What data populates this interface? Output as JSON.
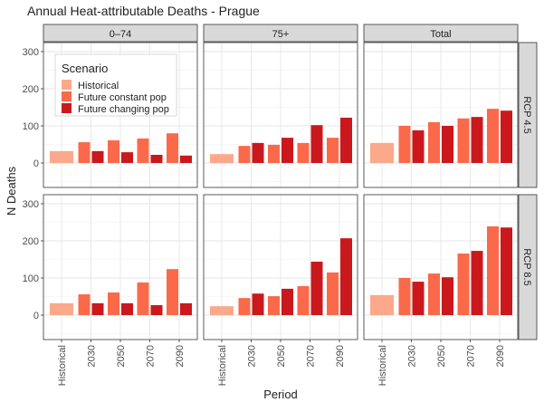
{
  "chart_data": {
    "type": "bar",
    "title": "Annual Heat-attributable Deaths - Prague",
    "xlabel": "Period",
    "ylabel": "N Deaths",
    "ylim": [
      -65,
      325
    ],
    "yticks": [
      0,
      100,
      200,
      300
    ],
    "grid": true,
    "categories": [
      "Historical",
      "2030",
      "2050",
      "2070",
      "2090"
    ],
    "facet_columns": [
      "0–74",
      "75+",
      "Total"
    ],
    "facet_rows": [
      "RCP 4.5",
      "RCP 8.5"
    ],
    "legend": {
      "title": "Scenario",
      "placement": "top-left (inside first panel)",
      "entries": [
        {
          "name": "Historical",
          "color": "#FCA98B"
        },
        {
          "name": "Future constant pop",
          "color": "#FA6A4A"
        },
        {
          "name": "Future changing pop",
          "color": "#CB181D"
        }
      ]
    },
    "panels": [
      {
        "row": "RCP 4.5",
        "column": "0–74",
        "historical": 32,
        "future_constant_pop": [
          null,
          56,
          61,
          66,
          80
        ],
        "future_changing_pop": [
          null,
          32,
          29,
          22,
          20
        ]
      },
      {
        "row": "RCP 4.5",
        "column": "75+",
        "historical": 24,
        "future_constant_pop": [
          null,
          46,
          49,
          54,
          68
        ],
        "future_changing_pop": [
          null,
          54,
          68,
          102,
          122
        ]
      },
      {
        "row": "RCP 4.5",
        "column": "Total",
        "historical": 54,
        "future_constant_pop": [
          null,
          100,
          110,
          120,
          146
        ],
        "future_changing_pop": [
          null,
          88,
          100,
          124,
          141
        ]
      },
      {
        "row": "RCP 8.5",
        "column": "0–74",
        "historical": 32,
        "future_constant_pop": [
          null,
          56,
          61,
          88,
          124
        ],
        "future_changing_pop": [
          null,
          32,
          32,
          27,
          32
        ]
      },
      {
        "row": "RCP 8.5",
        "column": "75+",
        "historical": 24,
        "future_constant_pop": [
          null,
          46,
          51,
          78,
          115
        ],
        "future_changing_pop": [
          null,
          58,
          71,
          144,
          207
        ]
      },
      {
        "row": "RCP 8.5",
        "column": "Total",
        "historical": 54,
        "future_constant_pop": [
          null,
          100,
          112,
          166,
          239
        ],
        "future_changing_pop": [
          null,
          90,
          102,
          173,
          236
        ]
      }
    ]
  }
}
